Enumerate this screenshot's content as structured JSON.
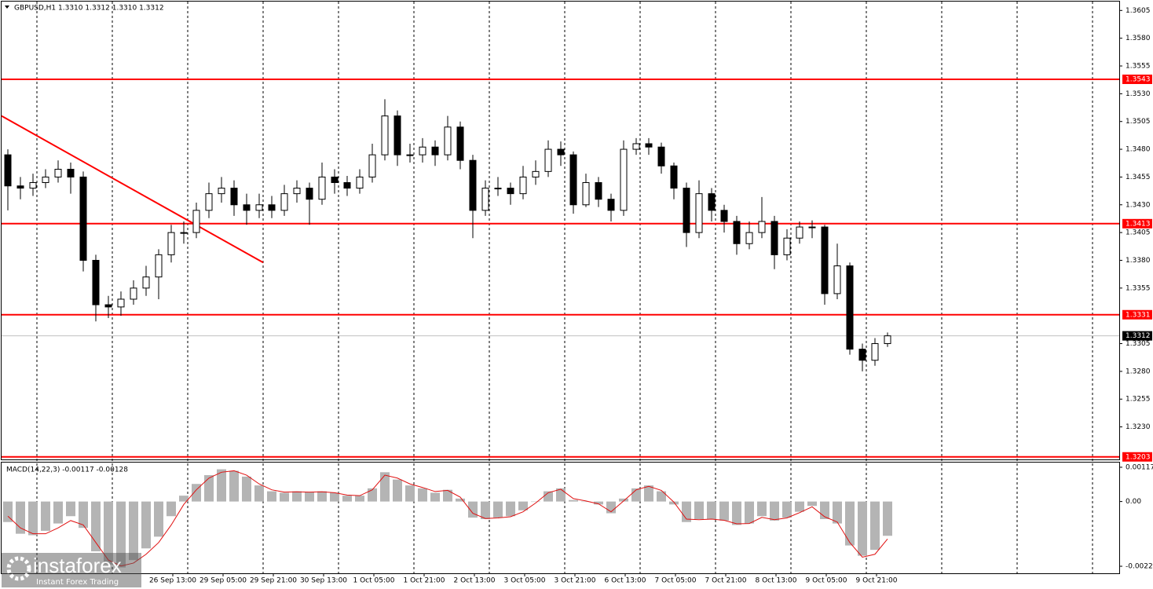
{
  "chart_data": [
    {
      "type": "candlestick",
      "title": "GBPUSD,H1  1.3310 1.3312 1.3310 1.3312",
      "open": [
        1.3475,
        1.3447,
        1.3445,
        1.345,
        1.3455,
        1.3462,
        1.3455,
        1.338,
        1.334,
        1.3338,
        1.3345,
        1.3355,
        1.3365,
        1.3385,
        1.3405,
        1.3405,
        1.3425,
        1.344,
        1.3445,
        1.343,
        1.3425,
        1.343,
        1.3425,
        1.344,
        1.3445,
        1.3435,
        1.3455,
        1.345,
        1.3445,
        1.3455,
        1.3475,
        1.351,
        1.3475,
        1.3475,
        1.3482,
        1.3475,
        1.35,
        1.347,
        1.3425,
        1.3445,
        1.3445,
        1.344,
        1.3455,
        1.346,
        1.348,
        1.3475,
        1.343,
        1.345,
        1.3435,
        1.3425,
        1.348,
        1.3485,
        1.3482,
        1.3465,
        1.3445,
        1.3405,
        1.344,
        1.3425,
        1.3415,
        1.3395,
        1.3405,
        1.3415,
        1.3385,
        1.34,
        1.341,
        1.341,
        1.335,
        1.3375,
        1.33,
        1.329,
        1.3305
      ],
      "high": [
        1.348,
        1.3455,
        1.3458,
        1.3462,
        1.347,
        1.3468,
        1.346,
        1.3385,
        1.3348,
        1.3352,
        1.3362,
        1.3375,
        1.339,
        1.3412,
        1.3415,
        1.3432,
        1.345,
        1.3455,
        1.3452,
        1.344,
        1.344,
        1.3438,
        1.3448,
        1.3452,
        1.345,
        1.3468,
        1.3462,
        1.3456,
        1.3462,
        1.3485,
        1.3525,
        1.3515,
        1.3485,
        1.349,
        1.3488,
        1.351,
        1.3505,
        1.3475,
        1.3452,
        1.3455,
        1.345,
        1.3465,
        1.347,
        1.3488,
        1.3487,
        1.3478,
        1.3458,
        1.3455,
        1.344,
        1.3488,
        1.349,
        1.349,
        1.3486,
        1.3468,
        1.345,
        1.3452,
        1.3445,
        1.343,
        1.342,
        1.3415,
        1.3437,
        1.342,
        1.3408,
        1.3415,
        1.3416,
        1.3412,
        1.3395,
        1.3378,
        1.3305,
        1.331,
        1.3315
      ],
      "low": [
        1.3425,
        1.3435,
        1.3438,
        1.3445,
        1.345,
        1.344,
        1.337,
        1.3325,
        1.3328,
        1.333,
        1.334,
        1.3348,
        1.3345,
        1.3378,
        1.3395,
        1.34,
        1.3418,
        1.3432,
        1.342,
        1.3412,
        1.3418,
        1.3418,
        1.342,
        1.3432,
        1.3412,
        1.343,
        1.344,
        1.3438,
        1.344,
        1.345,
        1.347,
        1.3465,
        1.3468,
        1.3468,
        1.3465,
        1.347,
        1.3462,
        1.34,
        1.342,
        1.3438,
        1.343,
        1.3435,
        1.3448,
        1.3455,
        1.3465,
        1.3422,
        1.3428,
        1.3428,
        1.3415,
        1.342,
        1.3475,
        1.3475,
        1.3458,
        1.3435,
        1.3392,
        1.34,
        1.3415,
        1.3405,
        1.3385,
        1.339,
        1.34,
        1.3372,
        1.338,
        1.3395,
        1.34,
        1.334,
        1.3345,
        1.3295,
        1.328,
        1.3285,
        1.3302
      ],
      "close": [
        1.3447,
        1.3445,
        1.345,
        1.3455,
        1.3462,
        1.3455,
        1.338,
        1.334,
        1.3338,
        1.3345,
        1.3355,
        1.3365,
        1.3385,
        1.3405,
        1.3405,
        1.3425,
        1.344,
        1.3445,
        1.343,
        1.3425,
        1.343,
        1.3425,
        1.344,
        1.3445,
        1.3435,
        1.3455,
        1.345,
        1.3445,
        1.3455,
        1.3475,
        1.351,
        1.3475,
        1.3475,
        1.3482,
        1.3475,
        1.35,
        1.347,
        1.3425,
        1.3445,
        1.3445,
        1.344,
        1.3455,
        1.346,
        1.348,
        1.3475,
        1.343,
        1.345,
        1.3435,
        1.3425,
        1.348,
        1.3485,
        1.3482,
        1.3465,
        1.3445,
        1.3405,
        1.344,
        1.3425,
        1.3415,
        1.3395,
        1.3405,
        1.3415,
        1.3385,
        1.34,
        1.341,
        1.341,
        1.335,
        1.3375,
        1.33,
        1.329,
        1.3305,
        1.3312
      ],
      "ylim": [
        1.32,
        1.3613
      ],
      "yticks": [
        1.3605,
        {
          "value": 1.358,
          "label": "1.3580"
        },
        1.3555,
        {
          "value": 1.353,
          "label": "1.3530"
        },
        1.3505,
        {
          "value": 1.348,
          "label": "1.3480"
        },
        1.3455,
        {
          "value": 1.343,
          "label": "1.3430"
        },
        1.3405,
        {
          "value": 1.338,
          "label": "1.3380"
        },
        1.3355,
        1.3305,
        {
          "value": 1.328,
          "label": "1.3280"
        },
        1.3255,
        {
          "value": 1.323,
          "label": "1.3230"
        }
      ],
      "levels": [
        1.3543,
        1.3413,
        1.3331,
        1.3203
      ],
      "level_color": "#ff0000",
      "last_price": 1.3312,
      "trendline": [
        1.351,
        1.3378
      ],
      "xlabels": [
        "26 Sep 13:00",
        "29 Sep 05:00",
        "29 Sep 21:00",
        "30 Sep 13:00",
        "1 Oct 05:00",
        "1 Oct 21:00",
        "2 Oct 13:00",
        "3 Oct 05:00",
        "3 Oct 21:00",
        "6 Oct 13:00",
        "7 Oct 05:00",
        "7 Oct 21:00",
        "8 Oct 13:00",
        "9 Oct 05:00",
        "9 Oct 21:00"
      ],
      "grid": true
    },
    {
      "type": "macd",
      "title": "MACD(14,22,3) -0.00117 -0.00128",
      "series": [
        {
          "name": "MACD",
          "color": "#b4b4b4",
          "values": [
            -0.0007,
            -0.0011,
            -0.00115,
            -0.001,
            -0.00075,
            -0.0005,
            -0.0009,
            -0.0017,
            -0.00215,
            -0.00225,
            -0.002,
            -0.0016,
            -0.0012,
            -0.0005,
            0.0002,
            0.0006,
            0.0009,
            0.0011,
            0.00105,
            0.00085,
            0.00055,
            0.00035,
            0.0003,
            0.00035,
            0.00032,
            0.00035,
            0.0003,
            0.0002,
            0.0002,
            0.00045,
            0.001,
            0.00075,
            0.00055,
            0.00045,
            0.0003,
            0.0004,
            0.0001,
            -0.00055,
            -0.0006,
            -0.00055,
            -0.0005,
            -0.0003,
            0,
            0.00035,
            0.00045,
            5e-05,
            0,
            -0.0001,
            -0.0004,
            0.0001,
            0.00045,
            0.00055,
            0.00035,
            -0.0001,
            -0.0007,
            -0.0006,
            -0.0006,
            -0.00065,
            -0.0008,
            -0.00075,
            -0.0005,
            -0.00065,
            -0.00055,
            -0.00035,
            -0.00015,
            -0.0006,
            -0.00075,
            -0.0015,
            -0.00185,
            -0.00165,
            -0.00117
          ]
        },
        {
          "name": "Signal",
          "color": "#e01010",
          "values": [
            -0.0005,
            -0.0009,
            -0.0011,
            -0.0011,
            -0.0009,
            -0.00065,
            -0.0008,
            -0.0014,
            -0.002,
            -0.0022,
            -0.0021,
            -0.0018,
            -0.0014,
            -0.0008,
            -0.0001,
            0.0004,
            0.0008,
            0.001,
            0.00105,
            0.0009,
            0.0006,
            0.0004,
            0.00032,
            0.00033,
            0.00032,
            0.00033,
            0.0003,
            0.00022,
            0.0002,
            0.0004,
            0.0009,
            0.0008,
            0.0006,
            0.00048,
            0.00034,
            0.00038,
            0.00015,
            -0.0004,
            -0.00058,
            -0.00056,
            -0.00052,
            -0.00035,
            -5e-05,
            0.0003,
            0.00042,
            0.0001,
            2e-05,
            -8e-05,
            -0.00035,
            2e-05,
            0.0004,
            0.00052,
            0.00038,
            -2e-05,
            -0.0006,
            -0.00062,
            -0.0006,
            -0.00064,
            -0.00076,
            -0.00075,
            -0.00054,
            -0.00062,
            -0.00056,
            -0.00038,
            -0.00018,
            -0.00052,
            -0.0007,
            -0.0014,
            -0.0019,
            -0.0018,
            -0.00128
          ]
        }
      ],
      "ylim": [
        -0.00245,
        0.00133
      ],
      "yticks": [
        0.00117,
        {
          "value": 0,
          "label": "0.00"
        },
        -0.00221
      ]
    }
  ],
  "watermark": {
    "brand": "instaforex",
    "tagline": "Instant Forex Trading"
  }
}
